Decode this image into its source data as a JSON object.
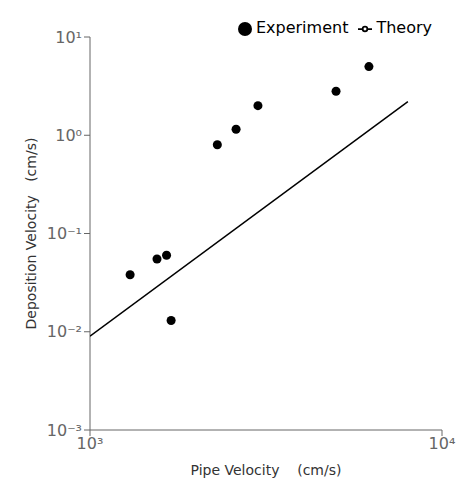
{
  "chart_data": {
    "type": "scatter",
    "xlabel": "Pipe Velocity    (cm/s)",
    "ylabel": "Deposition Velocity   (cm/s)",
    "log": true,
    "xlim": [
      1000,
      10000
    ],
    "ylim": [
      0.001,
      10
    ],
    "xticks": [
      {
        "value": 1000,
        "label": "10³"
      },
      {
        "value": 10000,
        "label": "10⁴"
      }
    ],
    "yticks": [
      {
        "value": 0.001,
        "label": "10⁻³"
      },
      {
        "value": 0.01,
        "label": "10⁻²"
      },
      {
        "value": 0.1,
        "label": "10⁻¹"
      },
      {
        "value": 1,
        "label": "10⁰"
      },
      {
        "value": 10,
        "label": "10¹"
      }
    ],
    "grid": false,
    "legend": "upper right",
    "series": [
      {
        "name": "Experiment",
        "type": "scatter",
        "marker": "circle",
        "color": "#000000",
        "x": [
          1300,
          1550,
          1650,
          1700,
          2300,
          2600,
          3000,
          5000,
          6200
        ],
        "values": [
          0.038,
          0.055,
          0.06,
          0.013,
          0.8,
          1.15,
          2.0,
          2.8,
          5.0
        ]
      },
      {
        "name": "Theory",
        "type": "line",
        "line_style": "solid",
        "color": "#000000",
        "x": [
          1000,
          8000
        ],
        "values": [
          0.009,
          2.2
        ]
      }
    ]
  }
}
